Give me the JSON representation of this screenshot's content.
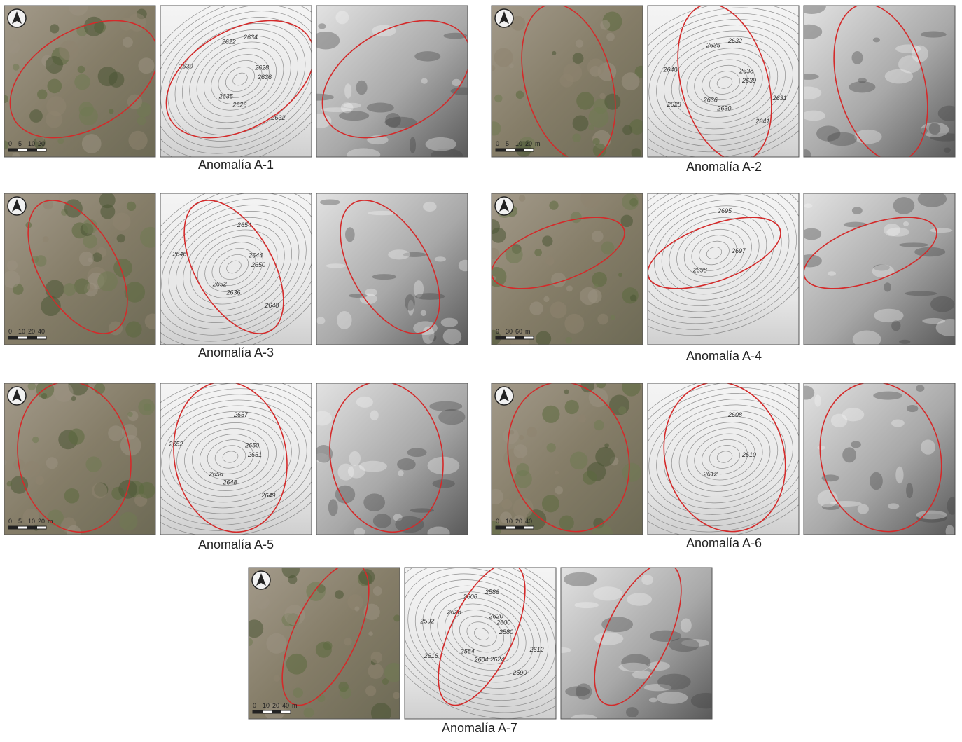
{
  "panels": [
    {
      "caption": "Anomalía A-1",
      "scale_labels": [
        "0",
        "5",
        "10",
        "20"
      ],
      "contour_labels": [
        "2636",
        "2635",
        "2634",
        "2632",
        "2630",
        "2628",
        "2626",
        "2622"
      ]
    },
    {
      "caption": "Anomalía A-2",
      "scale_labels": [
        "0",
        "5",
        "10",
        "20",
        "m"
      ],
      "contour_labels": [
        "2639",
        "2636",
        "2632",
        "2641",
        "2640",
        "2638",
        "2630",
        "2635",
        "2631",
        "2628"
      ]
    },
    {
      "caption": "Anomalía A-3",
      "scale_labels": [
        "0",
        "10",
        "20",
        "40"
      ],
      "contour_labels": [
        "2650",
        "2652",
        "2654",
        "2648",
        "2646",
        "2644",
        "2636"
      ]
    },
    {
      "caption": "Anomalía A-4",
      "scale_labels": [
        "0",
        "30",
        "60",
        "m"
      ],
      "contour_labels": [
        "2697",
        "2698",
        "2695"
      ]
    },
    {
      "caption": "Anomalía A-5",
      "scale_labels": [
        "0",
        "5",
        "10",
        "20",
        "m"
      ],
      "contour_labels": [
        "2651",
        "2656",
        "2657",
        "2649",
        "2652",
        "2650",
        "2648"
      ]
    },
    {
      "caption": "Anomalía A-6",
      "scale_labels": [
        "0",
        "10",
        "20",
        "40"
      ],
      "contour_labels": [
        "2610",
        "2612",
        "2608"
      ]
    },
    {
      "caption": "Anomalía A-7",
      "scale_labels": [
        "0",
        "10",
        "20",
        "40",
        "m"
      ],
      "contour_labels": [
        "2580",
        "2584",
        "2586",
        "2590",
        "2592",
        "2600",
        "2604",
        "2608",
        "2612",
        "2616",
        "2620",
        "2624",
        "2628"
      ]
    }
  ]
}
